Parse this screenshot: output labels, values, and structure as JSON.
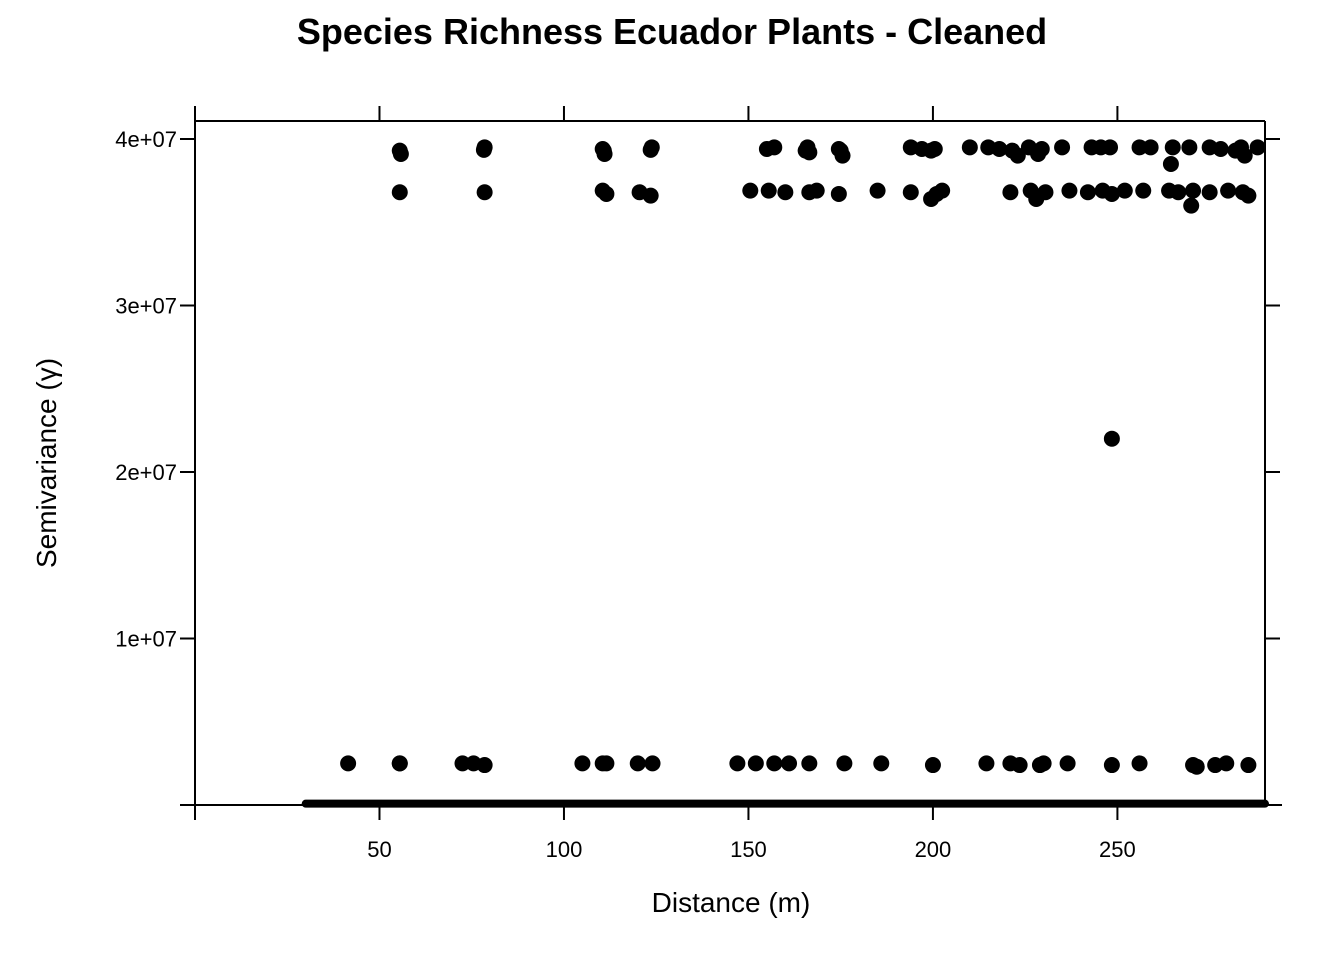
{
  "chart_data": {
    "type": "scatter",
    "title": "Species Richness Ecuador Plants - Cleaned",
    "xlabel": "Distance (m)",
    "ylabel": "Semivariance (γ)",
    "xlim": [
      0,
      290
    ],
    "ylim": [
      0,
      40000000
    ],
    "x_ticks": [
      {
        "value": 50,
        "label": "50"
      },
      {
        "value": 100,
        "label": "100"
      },
      {
        "value": 150,
        "label": "150"
      },
      {
        "value": 200,
        "label": "200"
      },
      {
        "value": 250,
        "label": "250"
      }
    ],
    "y_ticks": [
      {
        "value": 10000000,
        "label": "1e+07"
      },
      {
        "value": 20000000,
        "label": "2e+07"
      },
      {
        "value": 30000000,
        "label": "3e+07"
      },
      {
        "value": 40000000,
        "label": "4e+07"
      }
    ],
    "grid": false,
    "legend": "none",
    "marker_color": "#000000",
    "series": [
      {
        "x": [
          55.5,
          55.8,
          78.5,
          78.3,
          110.5,
          111,
          110.8,
          123.8,
          123.5,
          155,
          157,
          165.5,
          166,
          166.5,
          174.5,
          175.5,
          175,
          194,
          197,
          199.5,
          200.5,
          210,
          215,
          218,
          221.5,
          223,
          226,
          229.5,
          228.5,
          235,
          243,
          245.5,
          248,
          256,
          259,
          264.5,
          265,
          269.5,
          275,
          278,
          283.5,
          284.5,
          282,
          288,
          55.5,
          78.5,
          110.5,
          111.5,
          120.5,
          123.5,
          150.5,
          155.5,
          160,
          166.5,
          168.5,
          174.5,
          185,
          194,
          199.5,
          202.5,
          201,
          221,
          226.5,
          228,
          230.5,
          237,
          242,
          246,
          248.5,
          252,
          257,
          264,
          266.5,
          270,
          275,
          280,
          284,
          285.5,
          270.5,
          248.5,
          41.5,
          55.5,
          72.5,
          75.5,
          78.5,
          105,
          110.5,
          111.5,
          120,
          124,
          147,
          152,
          157,
          161,
          166.5,
          176,
          186,
          200,
          214.5,
          221,
          223.5,
          229,
          230,
          236.5,
          248.5,
          256,
          270.5,
          271.5,
          276.5,
          279.5,
          285.5,
          55.5
        ],
        "y": [
          39300000,
          39100000,
          39500000,
          39350000,
          39400000,
          39100000,
          39300000,
          39500000,
          39350000,
          39400000,
          39500000,
          39300000,
          39500000,
          39200000,
          39400000,
          39000000,
          39300000,
          39500000,
          39400000,
          39300000,
          39400000,
          39500000,
          39500000,
          39400000,
          39300000,
          39000000,
          39500000,
          39400000,
          39100000,
          39500000,
          39500000,
          39500000,
          39500000,
          39500000,
          39500000,
          38500000,
          39500000,
          39500000,
          39500000,
          39400000,
          39500000,
          39000000,
          39300000,
          39500000,
          36800000,
          36800000,
          36900000,
          36700000,
          36800000,
          36600000,
          36900000,
          36900000,
          36800000,
          36800000,
          36900000,
          36700000,
          36900000,
          36800000,
          36400000,
          36900000,
          36700000,
          36800000,
          36900000,
          36400000,
          36800000,
          36900000,
          36800000,
          36900000,
          36700000,
          36900000,
          36900000,
          36900000,
          36800000,
          36000000,
          36800000,
          36900000,
          36800000,
          36600000,
          36900000,
          22000000,
          2500000,
          2500000,
          2500000,
          2500000,
          2400000,
          2500000,
          2500000,
          2500000,
          2500000,
          2500000,
          2500000,
          2500000,
          2500000,
          2500000,
          2500000,
          2500000,
          2500000,
          2400000,
          2500000,
          2500000,
          2400000,
          2400000,
          2500000,
          2500000,
          2400000,
          2500000,
          2400000,
          2300000,
          2400000,
          2500000,
          2400000,
          2500000
        ]
      }
    ],
    "baseline_band": {
      "x_start": 30,
      "x_end": 290,
      "y": 20000
    }
  }
}
